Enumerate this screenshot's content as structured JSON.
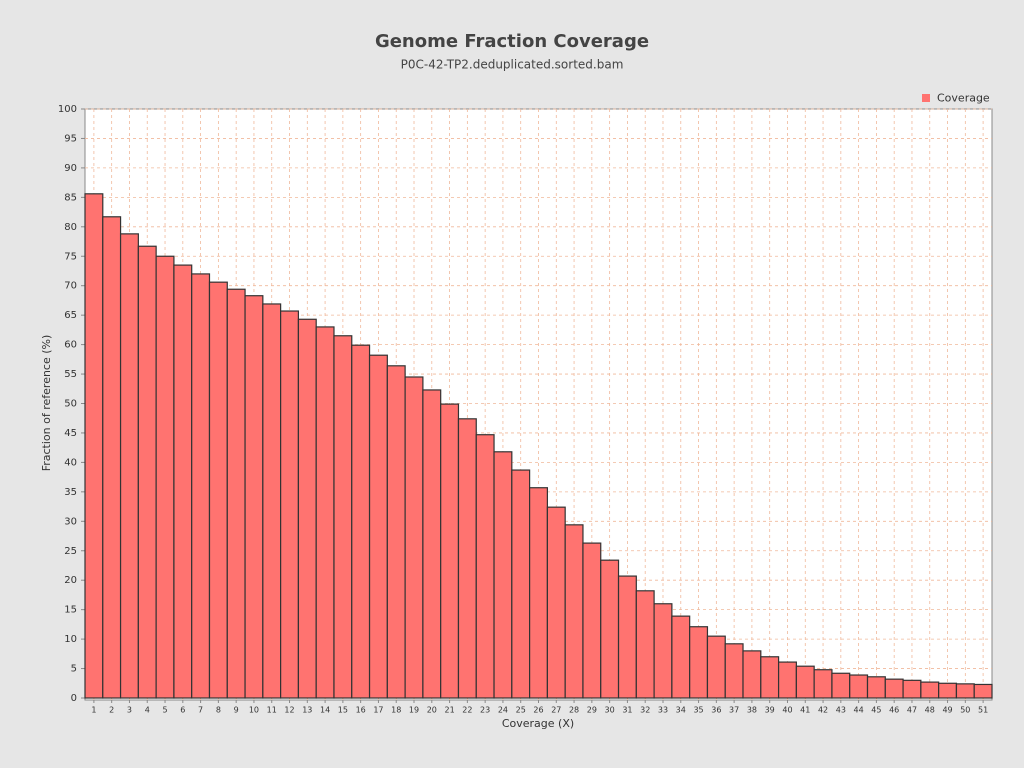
{
  "chart_data": {
    "type": "bar",
    "title": "Genome Fraction Coverage",
    "subtitle": "P0C-42-TP2.deduplicated.sorted.bam",
    "x_label": "Coverage (X)",
    "y_label": "Fraction of reference (%)",
    "legend_position": "top-right",
    "grid": true,
    "categories": [
      1,
      2,
      3,
      4,
      5,
      6,
      7,
      8,
      9,
      10,
      11,
      12,
      13,
      14,
      15,
      16,
      17,
      18,
      19,
      20,
      21,
      22,
      23,
      24,
      25,
      26,
      27,
      28,
      29,
      30,
      31,
      32,
      33,
      34,
      35,
      36,
      37,
      38,
      39,
      40,
      41,
      42,
      43,
      44,
      45,
      46,
      47,
      48,
      49,
      50,
      51
    ],
    "series": [
      {
        "name": "Coverage",
        "color": "#ff7370",
        "values": [
          85.6,
          81.7,
          78.8,
          76.7,
          75.0,
          73.5,
          72.0,
          70.6,
          69.4,
          68.3,
          66.9,
          65.7,
          64.3,
          63.0,
          61.5,
          59.9,
          58.2,
          56.4,
          54.5,
          52.3,
          49.9,
          47.4,
          44.7,
          41.8,
          38.7,
          35.7,
          32.4,
          29.4,
          26.3,
          23.4,
          20.7,
          18.2,
          16.0,
          13.9,
          12.1,
          10.5,
          9.2,
          8.0,
          7.0,
          6.1,
          5.4,
          4.8,
          4.2,
          3.9,
          3.6,
          3.2,
          3.0,
          2.7,
          2.5,
          2.4,
          2.3
        ]
      }
    ],
    "ylim": [
      0,
      100
    ],
    "yticks": [
      0,
      5,
      10,
      15,
      20,
      25,
      30,
      35,
      40,
      45,
      50,
      55,
      60,
      65,
      70,
      75,
      80,
      85,
      90,
      95,
      100
    ]
  }
}
